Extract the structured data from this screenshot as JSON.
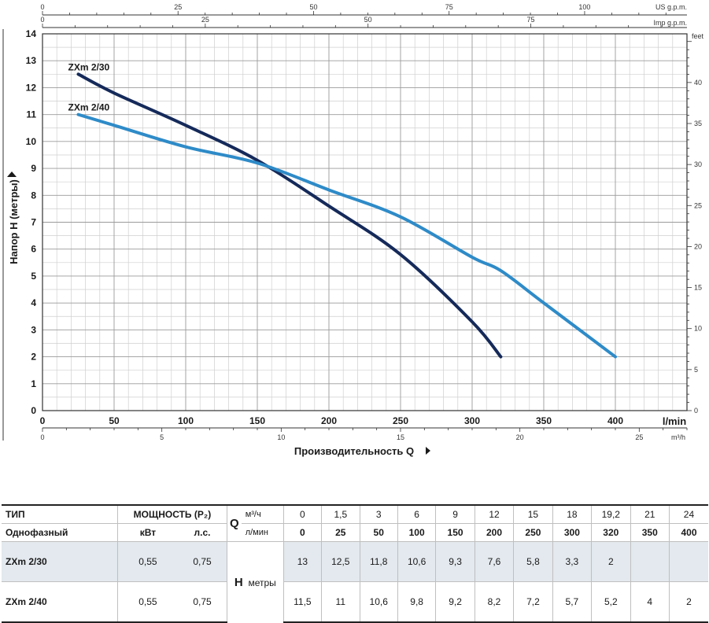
{
  "chart_data": {
    "type": "line",
    "x_unit_label": "l/min",
    "x_title": "Производительность Q",
    "y_title": "Напор H (метры)",
    "xlim": [
      0,
      450
    ],
    "ylim": [
      0,
      14
    ],
    "x_ticks": [
      0,
      50,
      100,
      150,
      200,
      250,
      300,
      350,
      400
    ],
    "y_ticks": [
      0,
      1,
      2,
      3,
      4,
      5,
      6,
      7,
      8,
      9,
      10,
      11,
      12,
      13,
      14
    ],
    "grid": true,
    "series": [
      {
        "name": "ZXm 2/30",
        "color": "#152a5a",
        "x": [
          25,
          50,
          100,
          150,
          200,
          250,
          300,
          320
        ],
        "y": [
          12.5,
          11.8,
          10.6,
          9.3,
          7.6,
          5.8,
          3.3,
          2
        ]
      },
      {
        "name": "ZXm 2/40",
        "color": "#2e8bc8",
        "x": [
          25,
          50,
          100,
          150,
          200,
          250,
          300,
          320,
          350,
          400
        ],
        "y": [
          11,
          10.6,
          9.8,
          9.2,
          8.2,
          7.2,
          5.7,
          5.2,
          4,
          2
        ]
      }
    ],
    "secondary_axes": {
      "us_gpm": {
        "label": "US g.p.m.",
        "ticks": [
          0,
          25,
          50,
          75,
          100
        ]
      },
      "imp_gpm": {
        "label": "Imp g.p.m.",
        "ticks": [
          0,
          25,
          50,
          75
        ]
      },
      "m3h": {
        "label": "m³/h",
        "ticks": [
          0,
          5,
          10,
          15,
          20,
          25
        ]
      },
      "feet": {
        "label": "feet",
        "ticks": [
          0,
          5,
          10,
          15,
          20,
          25,
          30,
          35,
          40
        ]
      }
    }
  },
  "table": {
    "type_header": "ТИП",
    "phase_label": "Однофазный",
    "power_header": "МОЩНОСТЬ (P₂)",
    "kw_label": "кВт",
    "hp_label": "л.с.",
    "q_label": "Q",
    "q_m3h_unit": "м³/ч",
    "q_lmin_unit": "л/мин",
    "q_m3h": [
      "0",
      "1,5",
      "3",
      "6",
      "9",
      "12",
      "15",
      "18",
      "19,2",
      "21",
      "24"
    ],
    "q_lmin": [
      "0",
      "25",
      "50",
      "100",
      "150",
      "200",
      "250",
      "300",
      "320",
      "350",
      "400"
    ],
    "h_label": "H",
    "h_unit": "метры",
    "rows": [
      {
        "model": "ZXm 2/30",
        "kw": "0,55",
        "hp": "0,75",
        "h": [
          "13",
          "12,5",
          "11,8",
          "10,6",
          "9,3",
          "7,6",
          "5,8",
          "3,3",
          "2",
          "",
          ""
        ]
      },
      {
        "model": "ZXm 2/40",
        "kw": "0,55",
        "hp": "0,75",
        "h": [
          "11,5",
          "11",
          "10,6",
          "9,8",
          "9,2",
          "8,2",
          "7,2",
          "5,7",
          "5,2",
          "4",
          "2"
        ]
      }
    ]
  }
}
